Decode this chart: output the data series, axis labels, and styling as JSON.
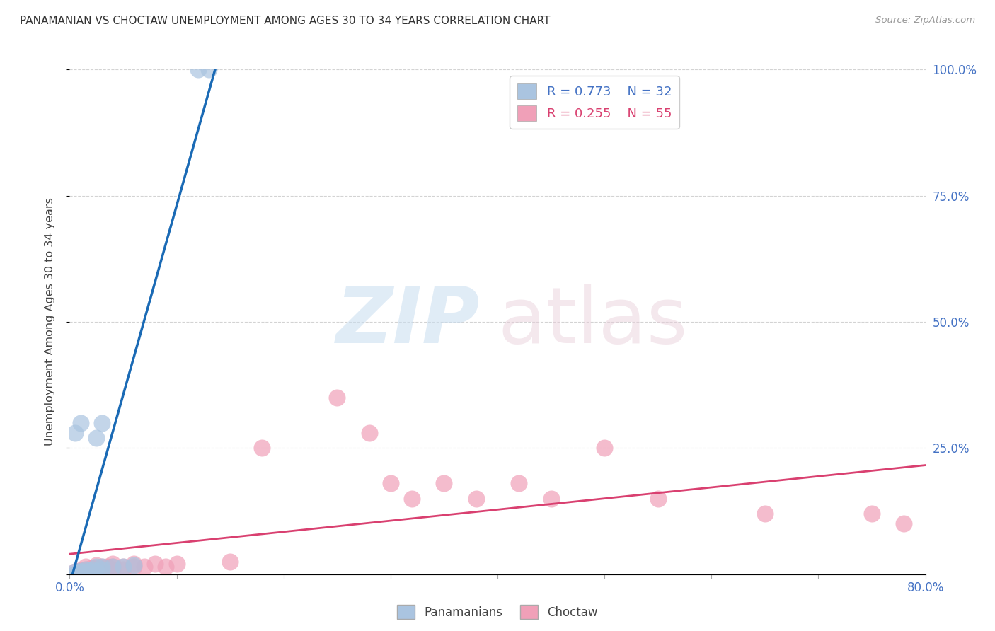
{
  "title": "PANAMANIAN VS CHOCTAW UNEMPLOYMENT AMONG AGES 30 TO 34 YEARS CORRELATION CHART",
  "source": "Source: ZipAtlas.com",
  "ylabel": "Unemployment Among Ages 30 to 34 years",
  "xlim": [
    0.0,
    0.8
  ],
  "ylim": [
    0.0,
    1.0
  ],
  "panamanian_color": "#aac4e0",
  "choctaw_color": "#f0a0b8",
  "trendline_pan_color": "#1a6ab5",
  "trendline_cho_color": "#d94070",
  "background_color": "#ffffff",
  "grid_color": "#c8c8c8",
  "pan_R": 0.773,
  "pan_N": 32,
  "cho_R": 0.255,
  "cho_N": 55,
  "panamanian_data": [
    [
      0.005,
      0.0
    ],
    [
      0.005,
      0.0
    ],
    [
      0.005,
      0.0
    ],
    [
      0.005,
      0.005
    ],
    [
      0.008,
      0.0
    ],
    [
      0.008,
      0.005
    ],
    [
      0.008,
      0.005
    ],
    [
      0.01,
      0.0
    ],
    [
      0.01,
      0.0
    ],
    [
      0.01,
      0.005
    ],
    [
      0.01,
      0.005
    ],
    [
      0.012,
      0.0
    ],
    [
      0.012,
      0.005
    ],
    [
      0.015,
      0.0
    ],
    [
      0.015,
      0.005
    ],
    [
      0.015,
      0.01
    ],
    [
      0.018,
      0.005
    ],
    [
      0.02,
      0.005
    ],
    [
      0.02,
      0.01
    ],
    [
      0.025,
      0.005
    ],
    [
      0.025,
      0.015
    ],
    [
      0.03,
      0.01
    ],
    [
      0.03,
      0.015
    ],
    [
      0.04,
      0.015
    ],
    [
      0.05,
      0.015
    ],
    [
      0.06,
      0.018
    ],
    [
      0.005,
      0.28
    ],
    [
      0.01,
      0.3
    ],
    [
      0.025,
      0.27
    ],
    [
      0.03,
      0.3
    ],
    [
      0.12,
      1.0
    ],
    [
      0.13,
      1.0
    ]
  ],
  "choctaw_data": [
    [
      0.005,
      0.0
    ],
    [
      0.005,
      0.0
    ],
    [
      0.005,
      0.005
    ],
    [
      0.008,
      0.0
    ],
    [
      0.008,
      0.005
    ],
    [
      0.01,
      0.0
    ],
    [
      0.01,
      0.005
    ],
    [
      0.01,
      0.008
    ],
    [
      0.012,
      0.0
    ],
    [
      0.012,
      0.005
    ],
    [
      0.015,
      0.0
    ],
    [
      0.015,
      0.005
    ],
    [
      0.015,
      0.01
    ],
    [
      0.015,
      0.015
    ],
    [
      0.018,
      0.005
    ],
    [
      0.018,
      0.008
    ],
    [
      0.02,
      0.005
    ],
    [
      0.02,
      0.008
    ],
    [
      0.02,
      0.012
    ],
    [
      0.025,
      0.005
    ],
    [
      0.025,
      0.008
    ],
    [
      0.025,
      0.012
    ],
    [
      0.025,
      0.018
    ],
    [
      0.03,
      0.005
    ],
    [
      0.03,
      0.01
    ],
    [
      0.03,
      0.015
    ],
    [
      0.035,
      0.005
    ],
    [
      0.035,
      0.01
    ],
    [
      0.035,
      0.015
    ],
    [
      0.04,
      0.01
    ],
    [
      0.04,
      0.015
    ],
    [
      0.04,
      0.02
    ],
    [
      0.05,
      0.01
    ],
    [
      0.05,
      0.015
    ],
    [
      0.06,
      0.015
    ],
    [
      0.06,
      0.02
    ],
    [
      0.07,
      0.015
    ],
    [
      0.08,
      0.02
    ],
    [
      0.09,
      0.015
    ],
    [
      0.1,
      0.02
    ],
    [
      0.15,
      0.025
    ],
    [
      0.18,
      0.25
    ],
    [
      0.25,
      0.35
    ],
    [
      0.28,
      0.28
    ],
    [
      0.3,
      0.18
    ],
    [
      0.32,
      0.15
    ],
    [
      0.35,
      0.18
    ],
    [
      0.38,
      0.15
    ],
    [
      0.42,
      0.18
    ],
    [
      0.45,
      0.15
    ],
    [
      0.5,
      0.25
    ],
    [
      0.55,
      0.15
    ],
    [
      0.65,
      0.12
    ],
    [
      0.75,
      0.12
    ],
    [
      0.78,
      0.1
    ]
  ]
}
